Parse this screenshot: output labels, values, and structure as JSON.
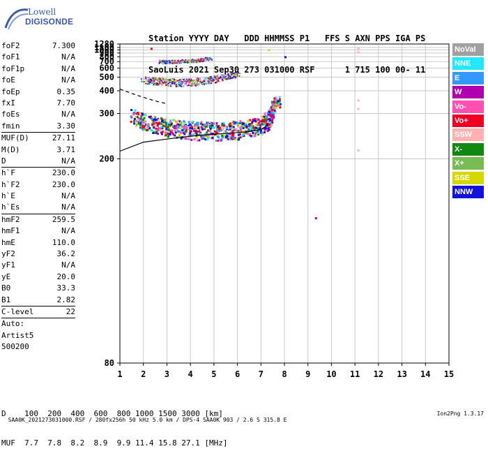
{
  "logo": {
    "line1": "Lowell",
    "line2": "DIGISONDE"
  },
  "header": {
    "labels": "Station YYYY DAY   DDD HHMMSS P1   FFS S AXN PPS IGA PS",
    "values": "SaoLuis 2021 Sep30 273 031000 RSF      1 715 100 00- 11"
  },
  "params": [
    {
      "label": "foF2",
      "value": "7.300"
    },
    {
      "label": "foF1",
      "value": "N/A"
    },
    {
      "label": "foF1p",
      "value": "N/A"
    },
    {
      "label": "foE",
      "value": "N/A"
    },
    {
      "label": "foEp",
      "value": "0.35"
    },
    {
      "label": "fxI",
      "value": "7.70"
    },
    {
      "label": "foEs",
      "value": "N/A"
    },
    {
      "label": "fmin",
      "value": "3.30",
      "sep": true
    },
    {
      "label": "MUF(D)",
      "value": "27.11"
    },
    {
      "label": "M(D)",
      "value": "3.71"
    },
    {
      "label": "D",
      "value": "N/A",
      "sep": true
    },
    {
      "label": "h`F",
      "value": "230.0"
    },
    {
      "label": "h`F2",
      "value": "230.0"
    },
    {
      "label": "h`E",
      "value": "N/A"
    },
    {
      "label": "h`Es",
      "value": "N/A",
      "sep": true
    },
    {
      "label": "hmF2",
      "value": "259.5"
    },
    {
      "label": "hmF1",
      "value": "N/A"
    },
    {
      "label": "hmE",
      "value": "110.0"
    },
    {
      "label": "yF2",
      "value": "36.2"
    },
    {
      "label": "yF1",
      "value": "N/A"
    },
    {
      "label": "yE",
      "value": "20.0"
    },
    {
      "label": "B0",
      "value": "33.3"
    },
    {
      "label": "B1",
      "value": "2.82",
      "sep": true
    },
    {
      "label": "C-level",
      "value": "22",
      "sep": true
    },
    {
      "label": "Auto:",
      "value": ""
    },
    {
      "label": "Artist5",
      "value": ""
    },
    {
      "label": "500200",
      "value": ""
    }
  ],
  "legend": [
    {
      "label": "NoVal",
      "color": "#a0a0a0"
    },
    {
      "label": "NNE",
      "color": "#22e8ff"
    },
    {
      "label": "E",
      "color": "#3399ff"
    },
    {
      "label": "W",
      "color": "#b000b0"
    },
    {
      "label": "Vo-",
      "color": "#ff4fb0"
    },
    {
      "label": "Vo+",
      "color": "#ee0022"
    },
    {
      "label": "SSW",
      "color": "#ffb0b0"
    },
    {
      "label": "X-",
      "color": "#118811"
    },
    {
      "label": "X+",
      "color": "#77bb55"
    },
    {
      "label": "SSE",
      "color": "#d6d600"
    },
    {
      "label": "NNW",
      "color": "#1111dd"
    }
  ],
  "muf_table": {
    "line1": "D    100  200  400  600  800 1000 1500 3000 [km]",
    "line2": "MUF  7.7  7.8  8.2  8.9  9.9 11.4 15.8 27.1 [MHz]"
  },
  "footer": {
    "left": "SAA0K_2021273031000.RSF / 280fx256h 50 kHz 5.0 km / DPS-4 SAA0K 903 / 2.6 S 315.8 E",
    "right": "Ion2Png 1.3.17"
  },
  "chart_data": {
    "type": "scatter",
    "xlim": [
      1,
      15
    ],
    "ylim": [
      80,
      1280
    ],
    "x_ticks": [
      "1",
      "2",
      "3",
      "4",
      "5",
      "6",
      "7",
      "8",
      "9",
      "10",
      "11",
      "12",
      "13",
      "14",
      "15"
    ],
    "y_ticks": [
      {
        "value": 80,
        "label": "80"
      },
      {
        "value": 200,
        "label": "200"
      },
      {
        "value": 300,
        "label": "300"
      },
      {
        "value": 400,
        "label": "400"
      },
      {
        "value": 500,
        "label": "500"
      },
      {
        "value": 600,
        "label": "600"
      },
      {
        "value": 700,
        "label": "700"
      },
      {
        "value": 800,
        "label": "800"
      },
      {
        "value": 900,
        "label": "900"
      },
      {
        "value": 1000,
        "label": "1000"
      },
      {
        "value": 1100,
        "label": "1100"
      },
      {
        "value": 1280,
        "label": "1280"
      }
    ],
    "y_scale": "reciprocal",
    "grid": true,
    "traces": [
      {
        "name": "F-trace lower",
        "points": [
          [
            1.5,
            290
          ],
          [
            2.0,
            272
          ],
          [
            2.5,
            262
          ],
          [
            3.0,
            256
          ],
          [
            3.5,
            252
          ],
          [
            4.0,
            250
          ],
          [
            4.5,
            248
          ],
          [
            5.0,
            247
          ],
          [
            5.5,
            248
          ],
          [
            6.0,
            250
          ],
          [
            6.5,
            254
          ],
          [
            7.0,
            262
          ],
          [
            7.3,
            278
          ],
          [
            7.5,
            310
          ],
          [
            7.7,
            350
          ]
        ]
      },
      {
        "name": "F-trace second hop",
        "points": [
          [
            2.0,
            470
          ],
          [
            2.5,
            460
          ],
          [
            3.0,
            455
          ],
          [
            3.5,
            450
          ],
          [
            4.0,
            452
          ],
          [
            4.5,
            462
          ],
          [
            5.0,
            478
          ],
          [
            5.5,
            500
          ],
          [
            6.0,
            525
          ]
        ]
      },
      {
        "name": "F-trace third hop",
        "points": [
          [
            2.7,
            700
          ],
          [
            3.0,
            695
          ],
          [
            3.5,
            700
          ],
          [
            4.0,
            712
          ],
          [
            4.5,
            735
          ],
          [
            4.8,
            760
          ]
        ]
      }
    ],
    "profile": [
      [
        1.0,
        212
      ],
      [
        2.0,
        228
      ],
      [
        3.0,
        234
      ],
      [
        4.0,
        240
      ],
      [
        5.0,
        244
      ],
      [
        6.0,
        248
      ],
      [
        6.5,
        250
      ],
      [
        7.0,
        255
      ],
      [
        7.2,
        262
      ],
      [
        7.3,
        270
      ]
    ],
    "dashed_extension": [
      [
        1.0,
        410
      ],
      [
        1.5,
        385
      ],
      [
        2.0,
        365
      ],
      [
        2.5,
        348
      ],
      [
        3.0,
        336
      ]
    ],
    "sporadic_points": [
      {
        "x": 2.3,
        "y": 1085,
        "dir": "Vo+"
      },
      {
        "x": 7.3,
        "y": 1030,
        "dir": "SSE"
      },
      {
        "x": 8.0,
        "y": 815,
        "dir": "NNW"
      },
      {
        "x": 9.3,
        "y": 140,
        "dir": "W"
      },
      {
        "x": 11.1,
        "y": 1100,
        "dir": "SSW"
      },
      {
        "x": 11.1,
        "y": 960,
        "dir": "SSW"
      },
      {
        "x": 11.1,
        "y": 355,
        "dir": "SSW"
      },
      {
        "x": 11.1,
        "y": 320,
        "dir": "SSW"
      },
      {
        "x": 11.1,
        "y": 215,
        "dir": "SSW"
      }
    ]
  }
}
